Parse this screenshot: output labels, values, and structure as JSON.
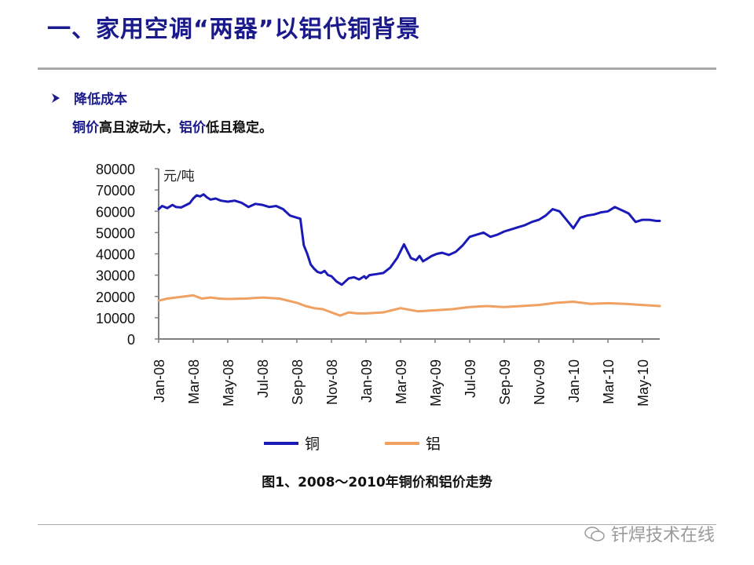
{
  "slide": {
    "title": "一、家用空调“两器”以铝代铜背景",
    "bullet": "降低成本",
    "bullet_icon": "arrow-right-icon",
    "subtext_part1": "铜价",
    "subtext_part2": "高且波动大，",
    "subtext_part3": "铝价",
    "subtext_part4": "低且稳定。",
    "caption": "图1、2008～2010年铜价和铝价走势",
    "watermark": "钎焊技术在线",
    "watermark_icon": "wechat-icon"
  },
  "colors": {
    "title": "#1a1a8c",
    "copper": "#1a1ab8",
    "aluminum": "#f0a060",
    "axis": "#7f7f7f"
  },
  "chart_data": {
    "type": "line",
    "title": "",
    "unit_label": "元/吨",
    "xlabel": "",
    "ylabel": "元/吨",
    "ylim": [
      0,
      80000
    ],
    "yticks": [
      80000,
      70000,
      60000,
      50000,
      40000,
      30000,
      20000,
      10000,
      0
    ],
    "xticks": [
      "Jan-08",
      "Mar-08",
      "May-08",
      "Jul-08",
      "Sep-08",
      "Nov-08",
      "Jan-09",
      "Mar-09",
      "May-09",
      "Jul-09",
      "Sep-09",
      "Nov-09",
      "Jan-10",
      "Mar-10",
      "May-10"
    ],
    "x_months": [
      0,
      29
    ],
    "legend": [
      {
        "name": "铜",
        "color": "#1a1ab8"
      },
      {
        "name": "铝",
        "color": "#f0a060"
      }
    ],
    "series": [
      {
        "name": "铜",
        "color": "#1a1ab8",
        "x": [
          0,
          0.2,
          0.5,
          0.8,
          1.0,
          1.3,
          1.6,
          1.8,
          2.0,
          2.2,
          2.4,
          2.6,
          2.8,
          3.0,
          3.3,
          3.6,
          4.0,
          4.4,
          4.8,
          5.2,
          5.6,
          6.0,
          6.4,
          6.8,
          7.2,
          7.6,
          8.0,
          8.2,
          8.4,
          8.6,
          8.8,
          9.0,
          9.2,
          9.4,
          9.6,
          9.8,
          10.0,
          10.3,
          10.6,
          11.0,
          11.3,
          11.6,
          11.9,
          12.0,
          12.2,
          12.6,
          13.0,
          13.4,
          13.8,
          14.2,
          14.6,
          14.9,
          15.1,
          15.3,
          15.5,
          15.8,
          16.1,
          16.4,
          16.8,
          17.2,
          17.6,
          18.0,
          18.4,
          18.8,
          19.2,
          19.6,
          20.0,
          20.4,
          20.8,
          21.2,
          21.6,
          22.0,
          22.4,
          22.8,
          23.2,
          23.6,
          24.0,
          24.4,
          24.8,
          25.2,
          25.6,
          26.0,
          26.4,
          26.8,
          27.2,
          27.6,
          28.0,
          28.4,
          28.8,
          29.0
        ],
        "values": [
          61000,
          62500,
          61500,
          63000,
          62000,
          61800,
          63000,
          63800,
          66000,
          67500,
          67000,
          68000,
          66500,
          65500,
          66000,
          65000,
          64500,
          65000,
          64000,
          62000,
          63500,
          63000,
          62000,
          62500,
          61000,
          58000,
          57000,
          56500,
          44000,
          40000,
          35000,
          33000,
          31500,
          31000,
          32000,
          30000,
          29500,
          27000,
          25500,
          28500,
          29000,
          28000,
          29500,
          28500,
          30000,
          30500,
          31000,
          33500,
          38000,
          44500,
          38000,
          37000,
          39000,
          36500,
          37500,
          39000,
          40000,
          40500,
          39500,
          41000,
          44000,
          48000,
          49000,
          50000,
          48000,
          49000,
          50500,
          51500,
          52500,
          53500,
          55000,
          56000,
          58000,
          61000,
          60000,
          56000,
          52000,
          57000,
          58000,
          58500,
          59500,
          60000,
          62000,
          60500,
          59000,
          55000,
          56000,
          56000,
          55500,
          55500
        ]
      },
      {
        "name": "铝",
        "color": "#f0a060",
        "x": [
          0,
          0.5,
          1.0,
          1.5,
          2.0,
          2.5,
          3.0,
          3.5,
          4.0,
          5.0,
          6.0,
          7.0,
          8.0,
          8.5,
          9.0,
          9.5,
          10.0,
          10.5,
          11.0,
          11.5,
          12.0,
          13.0,
          14.0,
          15.0,
          16.0,
          17.0,
          18.0,
          19.0,
          20.0,
          21.0,
          22.0,
          23.0,
          24.0,
          25.0,
          26.0,
          27.0,
          28.0,
          29.0
        ],
        "values": [
          18000,
          19000,
          19500,
          20000,
          20500,
          19000,
          19500,
          19000,
          18800,
          19000,
          19500,
          19000,
          17000,
          15500,
          14500,
          14000,
          12500,
          11000,
          12500,
          12000,
          12000,
          12500,
          14500,
          13000,
          13500,
          14000,
          15000,
          15500,
          15000,
          15500,
          16000,
          17000,
          17500,
          16500,
          16800,
          16500,
          16000,
          15500
        ]
      }
    ]
  }
}
